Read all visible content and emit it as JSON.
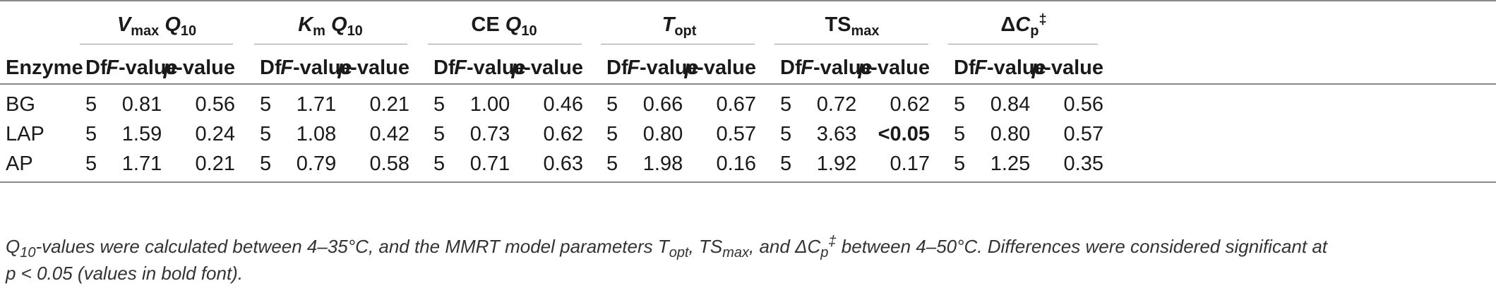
{
  "groups": [
    {
      "sym": "V",
      "sub": "max",
      "post": "Q",
      "post_sub": "10"
    },
    {
      "sym": "K",
      "sub": "m",
      "post": "Q",
      "post_sub": "10"
    },
    {
      "pre": "CE",
      "post": "Q",
      "post_sub": "10"
    },
    {
      "sym": "T",
      "sub": "opt"
    },
    {
      "pre": "TS",
      "sub": "max"
    },
    {
      "pre": "Δ",
      "sym": "C",
      "sub": "p",
      "sup": "‡"
    }
  ],
  "columns": {
    "enzyme": "Enzyme",
    "df": "Df",
    "f_it": "F",
    "f_rest": "-value",
    "p_it": "p",
    "p_rest": "-value"
  },
  "rows": [
    {
      "enzyme": "BG",
      "cells": [
        [
          "5",
          "0.81",
          "0.56"
        ],
        [
          "5",
          "1.71",
          "0.21"
        ],
        [
          "5",
          "1.00",
          "0.46"
        ],
        [
          "5",
          "0.66",
          "0.67"
        ],
        [
          "5",
          "0.72",
          "0.62"
        ],
        [
          "5",
          "0.84",
          "0.56"
        ]
      ]
    },
    {
      "enzyme": "LAP",
      "cells": [
        [
          "5",
          "1.59",
          "0.24"
        ],
        [
          "5",
          "1.08",
          "0.42"
        ],
        [
          "5",
          "0.73",
          "0.62"
        ],
        [
          "5",
          "0.80",
          "0.57"
        ],
        [
          "5",
          "3.63",
          "<0.05"
        ],
        [
          "5",
          "0.80",
          "0.57"
        ]
      ]
    },
    {
      "enzyme": "AP",
      "cells": [
        [
          "5",
          "1.71",
          "0.21"
        ],
        [
          "5",
          "0.79",
          "0.58"
        ],
        [
          "5",
          "0.71",
          "0.63"
        ],
        [
          "5",
          "1.98",
          "0.16"
        ],
        [
          "5",
          "1.92",
          "0.17"
        ],
        [
          "5",
          "1.25",
          "0.35"
        ]
      ]
    }
  ],
  "footnote": {
    "q": "Q",
    "q_sub": "10",
    "t1": "-values were calculated between 4–35°C, and the MMRT model parameters T",
    "t1_sub": "opt",
    "t2": ", TS",
    "t2_sub": "max",
    "t3": ", and ΔC",
    "t3_sub": "p",
    "t3_sup": "‡",
    "t4": " between 4–50°C. Differences were considered significant at",
    "line2": "p < 0.05 (values in bold font)."
  }
}
